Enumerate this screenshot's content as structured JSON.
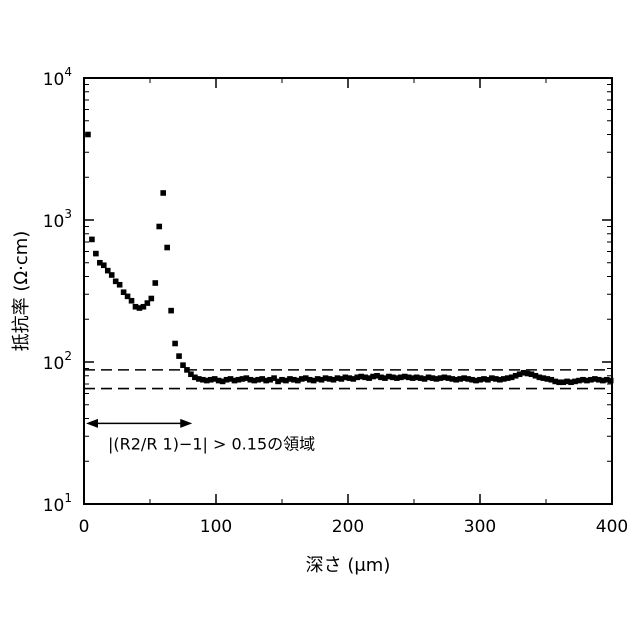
{
  "chart_data": {
    "type": "scatter",
    "xlabel": "深さ (μm)",
    "ylabel": "抵抗率 (Ω·cm)",
    "xlim": [
      0,
      400
    ],
    "ylim": [
      10,
      10000
    ],
    "yscale": "log",
    "x_ticks": [
      0,
      100,
      200,
      300,
      400
    ],
    "x_tick_labels": [
      "0",
      "100",
      "200",
      "300",
      "400"
    ],
    "y_ticks": [
      10,
      100,
      1000,
      10000
    ],
    "y_tick_labels": [
      {
        "base": "10",
        "exp": "1"
      },
      {
        "base": "10",
        "exp": "2"
      },
      {
        "base": "10",
        "exp": "3"
      },
      {
        "base": "10",
        "exp": "4"
      }
    ],
    "grid": false,
    "reference_lines": [
      {
        "style": "dashed",
        "y": 88
      },
      {
        "style": "dashed",
        "y": 65
      }
    ],
    "annotation": {
      "text": "|(R2/R 1)−1| > 0.15の領域",
      "x_range": [
        0,
        82
      ],
      "y": 37
    },
    "marker_color": "#000000",
    "series": [
      {
        "x": [
          3,
          6,
          9,
          12,
          15,
          18,
          21,
          24,
          27,
          30,
          33,
          36,
          39,
          42,
          45,
          48,
          51,
          54,
          57,
          60,
          63,
          66,
          69,
          72,
          75,
          78,
          81,
          84,
          87,
          90,
          93,
          96,
          99,
          102,
          105,
          108,
          111,
          114,
          117,
          120,
          123,
          126,
          129,
          132,
          135,
          138,
          141,
          144,
          147,
          150,
          153,
          156,
          159,
          162,
          165,
          168,
          171,
          174,
          177,
          180,
          183,
          186,
          189,
          192,
          195,
          198,
          201,
          204,
          207,
          210,
          213,
          216,
          219,
          222,
          225,
          228,
          231,
          234,
          237,
          240,
          243,
          246,
          249,
          252,
          255,
          258,
          261,
          264,
          267,
          270,
          273,
          276,
          279,
          282,
          285,
          288,
          291,
          294,
          297,
          300,
          303,
          306,
          309,
          312,
          315,
          318,
          321,
          324,
          327,
          330,
          333,
          336,
          339,
          342,
          345,
          348,
          351,
          354,
          357,
          360,
          363,
          366,
          369,
          372,
          375,
          378,
          381,
          384,
          387,
          390,
          393,
          396,
          399
        ],
        "y": [
          4000,
          730,
          580,
          500,
          480,
          440,
          410,
          370,
          350,
          310,
          290,
          270,
          245,
          240,
          245,
          260,
          280,
          360,
          900,
          1550,
          640,
          230,
          135,
          110,
          95,
          88,
          82,
          78,
          76,
          75,
          74,
          75,
          76,
          74,
          73,
          75,
          76,
          74,
          75,
          76,
          77,
          75,
          74,
          75,
          76,
          74,
          75,
          77,
          73,
          75,
          74,
          76,
          75,
          74,
          76,
          77,
          75,
          74,
          76,
          75,
          77,
          76,
          75,
          77,
          76,
          78,
          77,
          76,
          78,
          79,
          78,
          77,
          79,
          80,
          78,
          77,
          79,
          78,
          77,
          78,
          79,
          78,
          77,
          78,
          77,
          76,
          78,
          77,
          76,
          77,
          78,
          77,
          76,
          75,
          76,
          77,
          76,
          75,
          74,
          75,
          76,
          75,
          77,
          76,
          75,
          76,
          77,
          78,
          80,
          82,
          84,
          83,
          82,
          80,
          78,
          77,
          76,
          75,
          73,
          72,
          72,
          73,
          72,
          73,
          74,
          75,
          74,
          75,
          76,
          75,
          74,
          75,
          74
        ]
      }
    ]
  }
}
